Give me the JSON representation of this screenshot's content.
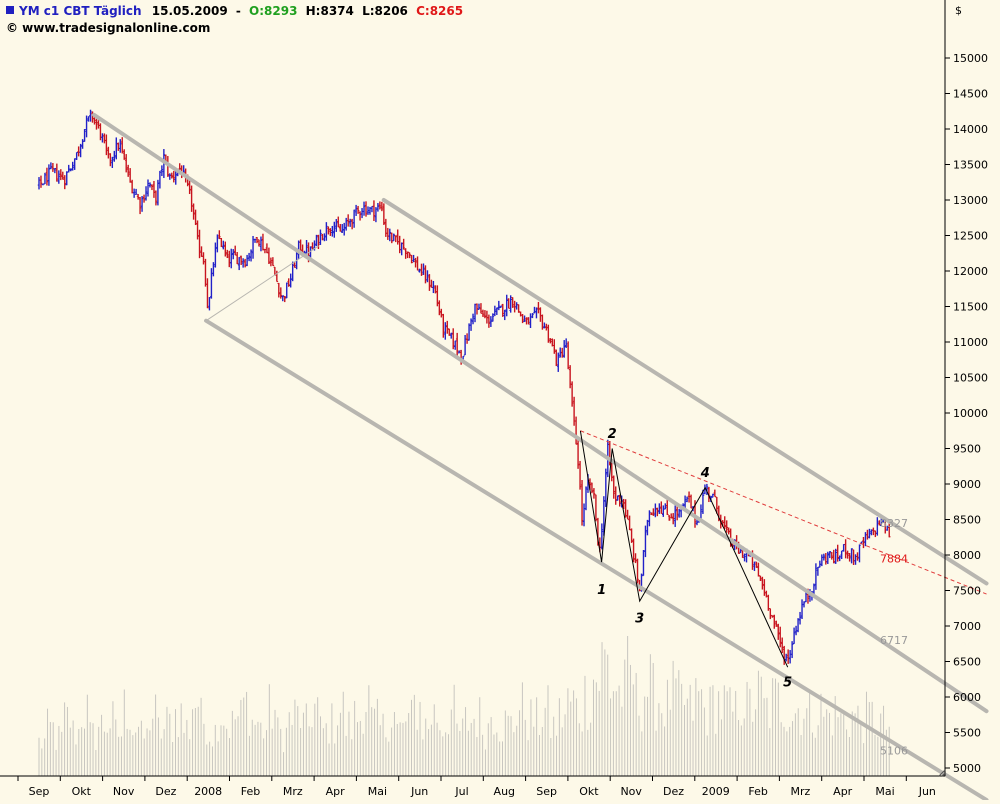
{
  "header": {
    "symbol": "YM c1 CBT Täglich",
    "date": "15.05.2009",
    "open_label": "O:8293",
    "high_label": "H:8374",
    "low_label": "L:8206",
    "close_label": "C:8265",
    "copyright": "© www.tradesignalonline.com",
    "currency": "$"
  },
  "colors": {
    "background": "#fdf9e8",
    "up_bar": "#2121c8",
    "down_bar": "#c8141e",
    "channel": "#b8b6b0",
    "trendline": "#e03c3c",
    "open_text": "#20a020",
    "close_text": "#e01818",
    "symbol_text": "#2020c0"
  },
  "chart_data": {
    "type": "ohlc",
    "ylim": [
      4900,
      15750
    ],
    "y_ticks": [
      5000,
      5500,
      6000,
      6500,
      7000,
      7500,
      8000,
      8500,
      9000,
      9500,
      10000,
      10500,
      11000,
      11500,
      12000,
      12500,
      13000,
      13500,
      14000,
      14500,
      15000
    ],
    "y_tick_labels": [
      "5000",
      "5500",
      "6000",
      "6500",
      "7000",
      "7500",
      "8000",
      "8500",
      "9000",
      "9500",
      "10000",
      "10500",
      "11000",
      "11500",
      "12000",
      "12500",
      "13000",
      "13500",
      "14000",
      "14500",
      "15000"
    ],
    "x_tick_labels": [
      "Sep",
      "Okt",
      "Nov",
      "Dez",
      "2008",
      "Feb",
      "Mrz",
      "Apr",
      "Mai",
      "Jun",
      "Jul",
      "Aug",
      "Sep",
      "Okt",
      "Nov",
      "Dez",
      "2009",
      "Feb",
      "Mrz",
      "Apr",
      "Mai",
      "Jun"
    ],
    "x_tick_months": [
      0,
      1,
      2,
      3,
      4,
      5,
      6,
      7,
      8,
      9,
      10,
      11,
      12,
      13,
      14,
      15,
      16,
      17,
      18,
      19,
      20,
      21
    ],
    "price_path": [
      [
        0.0,
        13200
      ],
      [
        0.3,
        13400
      ],
      [
        0.6,
        13300
      ],
      [
        0.9,
        13650
      ],
      [
        1.1,
        14050
      ],
      [
        1.25,
        14200
      ],
      [
        1.45,
        13950
      ],
      [
        1.65,
        13550
      ],
      [
        1.9,
        13800
      ],
      [
        2.15,
        13250
      ],
      [
        2.4,
        12950
      ],
      [
        2.6,
        13250
      ],
      [
        2.75,
        13000
      ],
      [
        2.95,
        13600
      ],
      [
        3.1,
        13300
      ],
      [
        3.35,
        13450
      ],
      [
        3.6,
        13000
      ],
      [
        3.75,
        12400
      ],
      [
        3.9,
        12150
      ],
      [
        4.0,
        11400
      ],
      [
        4.1,
        12050
      ],
      [
        4.25,
        12500
      ],
      [
        4.45,
        12150
      ],
      [
        4.6,
        12200
      ],
      [
        4.9,
        12150
      ],
      [
        5.15,
        12500
      ],
      [
        5.4,
        12250
      ],
      [
        5.55,
        12000
      ],
      [
        5.75,
        11600
      ],
      [
        5.95,
        11900
      ],
      [
        6.15,
        12350
      ],
      [
        6.4,
        12250
      ],
      [
        6.65,
        12500
      ],
      [
        6.9,
        12650
      ],
      [
        7.15,
        12550
      ],
      [
        7.4,
        12750
      ],
      [
        7.65,
        12900
      ],
      [
        7.85,
        12850
      ],
      [
        8.1,
        12900
      ],
      [
        8.2,
        12550
      ],
      [
        8.45,
        12400
      ],
      [
        8.7,
        12300
      ],
      [
        8.95,
        12050
      ],
      [
        9.15,
        11900
      ],
      [
        9.35,
        11750
      ],
      [
        9.55,
        11200
      ],
      [
        9.8,
        11000
      ],
      [
        10.0,
        10800
      ],
      [
        10.3,
        11500
      ],
      [
        10.6,
        11300
      ],
      [
        10.9,
        11450
      ],
      [
        11.2,
        11600
      ],
      [
        11.5,
        11250
      ],
      [
        11.8,
        11400
      ],
      [
        12.05,
        11100
      ],
      [
        12.25,
        10700
      ],
      [
        12.45,
        11000
      ],
      [
        12.6,
        10100
      ],
      [
        12.75,
        9300
      ],
      [
        12.85,
        8400
      ],
      [
        12.95,
        9000
      ],
      [
        13.1,
        8900
      ],
      [
        13.25,
        8000
      ],
      [
        13.45,
        9500
      ],
      [
        13.6,
        8800
      ],
      [
        13.8,
        8800
      ],
      [
        14.0,
        8200
      ],
      [
        14.2,
        7500
      ],
      [
        14.4,
        8600
      ],
      [
        14.65,
        8700
      ],
      [
        14.9,
        8550
      ],
      [
        15.15,
        8600
      ],
      [
        15.35,
        8800
      ],
      [
        15.55,
        8450
      ],
      [
        15.75,
        8950
      ],
      [
        15.95,
        8800
      ],
      [
        16.15,
        8450
      ],
      [
        16.35,
        8200
      ],
      [
        16.55,
        8050
      ],
      [
        16.75,
        8000
      ],
      [
        16.95,
        7800
      ],
      [
        17.15,
        7500
      ],
      [
        17.35,
        7100
      ],
      [
        17.55,
        6700
      ],
      [
        17.7,
        6500
      ],
      [
        17.85,
        6900
      ],
      [
        18.05,
        7300
      ],
      [
        18.25,
        7500
      ],
      [
        18.45,
        7900
      ],
      [
        18.65,
        8000
      ],
      [
        18.85,
        7950
      ],
      [
        19.05,
        8100
      ],
      [
        19.3,
        7950
      ],
      [
        19.5,
        8200
      ],
      [
        19.7,
        8300
      ],
      [
        19.9,
        8500
      ],
      [
        20.1,
        8300
      ]
    ],
    "volume_scale_max": 24000,
    "volume_samples": [
      6500,
      9000,
      7200,
      11000,
      8500,
      12500,
      7800,
      9800,
      10500,
      8200,
      13000,
      9500,
      7500,
      11800,
      8800,
      10200,
      12000,
      9200,
      14500,
      10800,
      8600,
      12200,
      9900,
      11200,
      13800,
      10400,
      9000,
      12600,
      8300,
      10900,
      11600,
      9700,
      13200,
      8700,
      10100,
      12800,
      9400,
      11400,
      14800,
      10300,
      9100,
      12100,
      8900,
      10700,
      13500,
      9600,
      11900,
      10000,
      12400,
      8600,
      10500,
      11300,
      9300,
      12700,
      10200,
      9800,
      13100,
      11000,
      10600,
      12300,
      9500,
      11700,
      14100,
      12900,
      15600,
      18800,
      22000,
      17500,
      16200,
      19500,
      14800,
      16900,
      15300,
      13700,
      15800,
      14200,
      13000,
      15100,
      12600,
      14400,
      13600,
      12200,
      14900,
      13300,
      15400,
      12800,
      14600,
      13900,
      12400,
      13200,
      11800,
      12700,
      11500,
      12100,
      10800,
      11600,
      10900,
      11300,
      10500,
      9800
    ],
    "channel_lines": [
      {
        "from": [
          1.3,
          14200
        ],
        "to": [
          22.4,
          5800
        ]
      },
      {
        "from": [
          3.95,
          11300
        ],
        "to": [
          22.4,
          4550
        ]
      },
      {
        "from": [
          8.15,
          13000
        ],
        "to": [
          22.4,
          7600
        ]
      },
      {
        "from": [
          3.95,
          11300
        ],
        "to": [
          6.6,
          12350
        ]
      }
    ],
    "trendline": {
      "from": [
        12.8,
        9750
      ],
      "to": [
        22.4,
        7450
      ]
    },
    "wave_points": [
      {
        "label": "1",
        "m": 13.3,
        "v": 7900,
        "text_v": 7450
      },
      {
        "label": "2",
        "m": 13.55,
        "v": 9500,
        "text_v": 9650
      },
      {
        "label": "3",
        "m": 14.2,
        "v": 7350,
        "text_v": 7050
      },
      {
        "label": "4",
        "m": 15.75,
        "v": 8950,
        "text_v": 9100
      },
      {
        "label": "5",
        "m": 17.7,
        "v": 6420,
        "text_v": 6150
      }
    ],
    "wave_path": [
      [
        12.8,
        9750
      ],
      [
        13.3,
        7900
      ],
      [
        13.55,
        9500
      ],
      [
        14.2,
        7350
      ],
      [
        15.75,
        8950
      ],
      [
        17.7,
        6420
      ]
    ],
    "level_labels": [
      {
        "text": "8327",
        "v": 8450,
        "color": "#999999"
      },
      {
        "text": "7884",
        "v": 7950,
        "color": "#e01818"
      },
      {
        "text": "6717",
        "v": 6800,
        "color": "#999999"
      },
      {
        "text": "5106",
        "v": 5250,
        "color": "#999999"
      }
    ]
  }
}
